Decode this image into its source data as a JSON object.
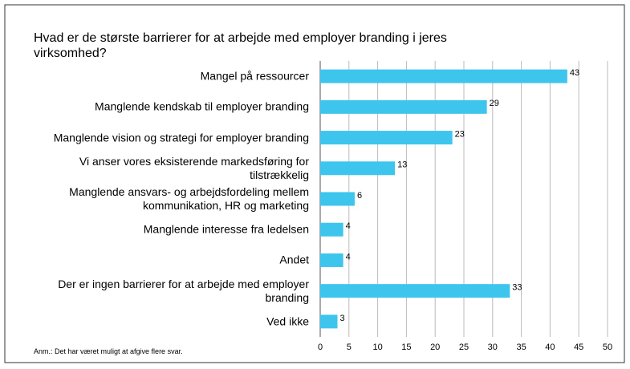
{
  "chart_data": {
    "type": "bar",
    "orientation": "horizontal",
    "title": "Hvad er de største barrierer for at arbejde med employer branding i jeres virksomhed?",
    "categories": [
      "Mangel på ressourcer",
      "Manglende kendskab til employer branding",
      "Manglende vision og strategi for employer branding",
      "Vi anser vores eksisterende markedsføring for tilstrækkelig",
      "Manglende ansvars- og arbejdsfordeling mellem kommunikation, HR og marketing",
      "Manglende interesse fra ledelsen",
      "Andet",
      "Der er ingen barrierer for at arbejde med employer branding",
      "Ved ikke"
    ],
    "values": [
      43,
      29,
      23,
      13,
      6,
      4,
      4,
      33,
      3
    ],
    "color": "#3ec5ee",
    "xlim": [
      0,
      50
    ],
    "xticks": [
      0,
      5,
      10,
      15,
      20,
      25,
      30,
      35,
      40,
      45,
      50
    ],
    "grid": true,
    "note": "Anm.: Det har været muligt at afgive flere svar."
  }
}
